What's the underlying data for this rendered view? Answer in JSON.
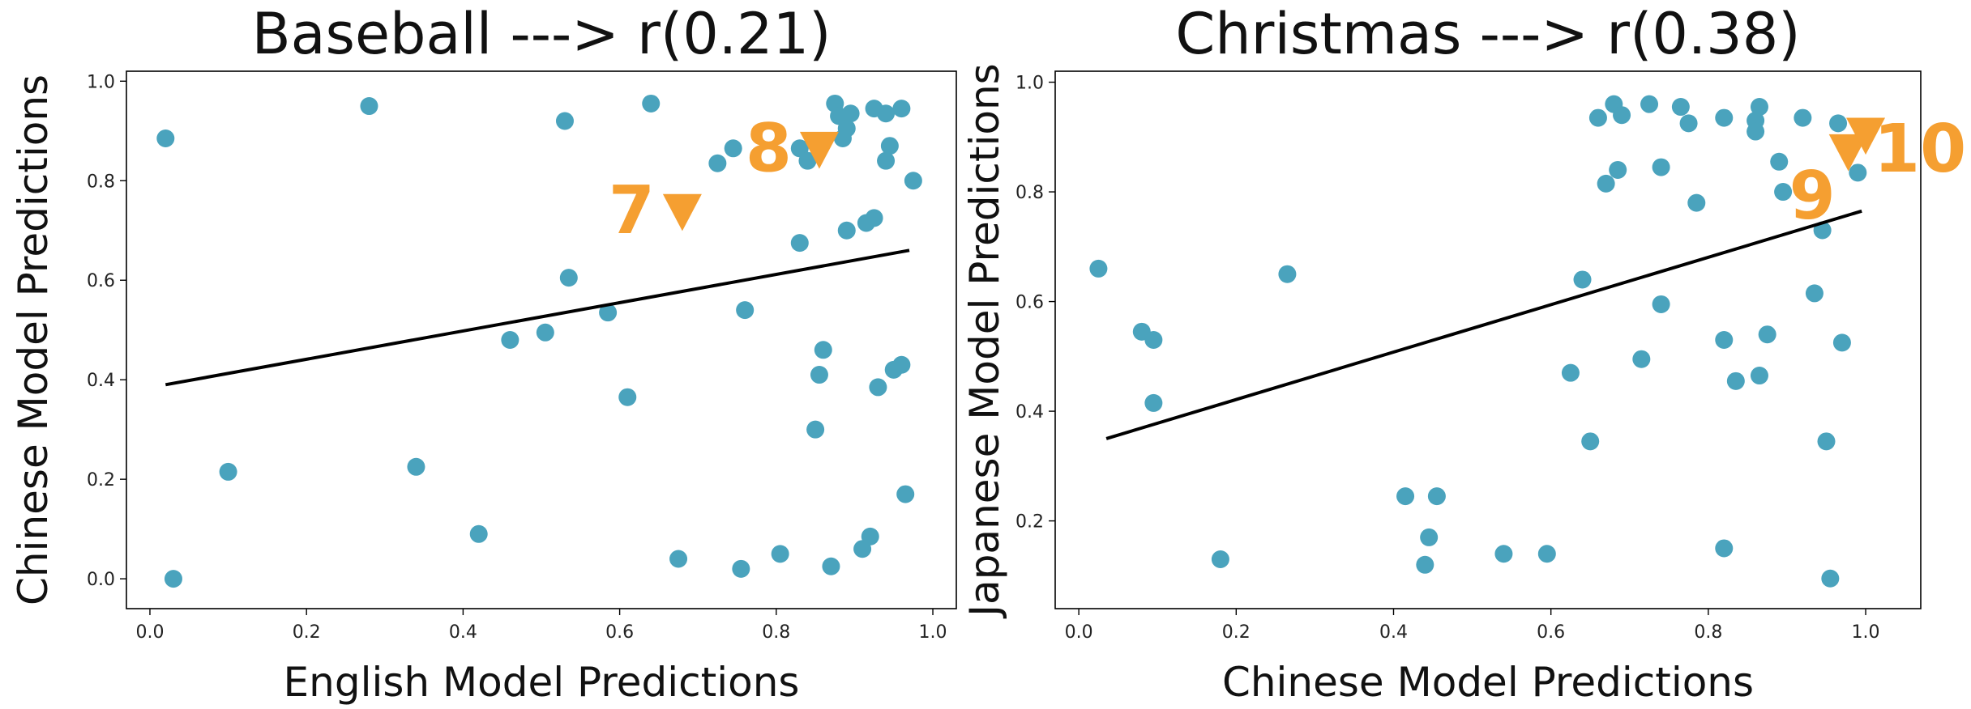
{
  "chart_data": [
    {
      "type": "scatter",
      "title": "Baseball ---> r(0.21)",
      "xlabel": "English Model Predictions",
      "ylabel": "Chinese Model Predictions",
      "xlim": [
        -0.03,
        1.03
      ],
      "ylim": [
        -0.06,
        1.02
      ],
      "xticks": [
        0.0,
        0.2,
        0.4,
        0.6,
        0.8,
        1.0
      ],
      "xtick_labels": [
        "0.0",
        "0.2",
        "0.4",
        "0.6",
        "0.8",
        "1.0"
      ],
      "yticks": [
        0.0,
        0.2,
        0.4,
        0.6,
        0.8,
        1.0
      ],
      "ytick_labels": [
        "0.0",
        "0.2",
        "0.4",
        "0.6",
        "0.8",
        "1.0"
      ],
      "grid": false,
      "point_color": "#4aa3bd",
      "fit_color": "#000000",
      "points": [
        [
          0.02,
          0.885
        ],
        [
          0.03,
          0.0
        ],
        [
          0.1,
          0.215
        ],
        [
          0.28,
          0.95
        ],
        [
          0.34,
          0.225
        ],
        [
          0.42,
          0.09
        ],
        [
          0.46,
          0.48
        ],
        [
          0.505,
          0.495
        ],
        [
          0.53,
          0.92
        ],
        [
          0.535,
          0.605
        ],
        [
          0.585,
          0.535
        ],
        [
          0.61,
          0.365
        ],
        [
          0.64,
          0.955
        ],
        [
          0.675,
          0.04
        ],
        [
          0.725,
          0.835
        ],
        [
          0.745,
          0.865
        ],
        [
          0.755,
          0.02
        ],
        [
          0.76,
          0.54
        ],
        [
          0.805,
          0.05
        ],
        [
          0.83,
          0.865
        ],
        [
          0.83,
          0.675
        ],
        [
          0.84,
          0.84
        ],
        [
          0.85,
          0.3
        ],
        [
          0.855,
          0.41
        ],
        [
          0.86,
          0.46
        ],
        [
          0.87,
          0.025
        ],
        [
          0.875,
          0.955
        ],
        [
          0.88,
          0.93
        ],
        [
          0.885,
          0.885
        ],
        [
          0.89,
          0.905
        ],
        [
          0.895,
          0.935
        ],
        [
          0.89,
          0.7
        ],
        [
          0.91,
          0.06
        ],
        [
          0.915,
          0.715
        ],
        [
          0.92,
          0.085
        ],
        [
          0.925,
          0.725
        ],
        [
          0.925,
          0.945
        ],
        [
          0.93,
          0.385
        ],
        [
          0.94,
          0.935
        ],
        [
          0.94,
          0.84
        ],
        [
          0.945,
          0.87
        ],
        [
          0.95,
          0.42
        ],
        [
          0.96,
          0.43
        ],
        [
          0.96,
          0.945
        ],
        [
          0.965,
          0.17
        ],
        [
          0.975,
          0.8
        ]
      ],
      "fit_line": [
        [
          0.02,
          0.39
        ],
        [
          0.97,
          0.66
        ]
      ],
      "annotations": [
        {
          "label": "7",
          "x": 0.68,
          "y": 0.74,
          "color": "#f59f31",
          "label_side": "left"
        },
        {
          "label": "8",
          "x": 0.855,
          "y": 0.865,
          "color": "#f59f31",
          "label_side": "left"
        }
      ]
    },
    {
      "type": "scatter",
      "title": "Christmas ---> r(0.38)",
      "xlabel": "Chinese Model Predictions",
      "ylabel": "Japanese Model Predictions",
      "xlim": [
        -0.03,
        1.07
      ],
      "ylim": [
        0.04,
        1.02
      ],
      "xticks": [
        0.0,
        0.2,
        0.4,
        0.6,
        0.8,
        1.0
      ],
      "xtick_labels": [
        "0.0",
        "0.2",
        "0.4",
        "0.6",
        "0.8",
        "1.0"
      ],
      "yticks": [
        0.2,
        0.4,
        0.6,
        0.8,
        1.0
      ],
      "ytick_labels": [
        "0.2",
        "0.4",
        "0.6",
        "0.8",
        "1.0"
      ],
      "grid": false,
      "point_color": "#4aa3bd",
      "fit_color": "#000000",
      "points": [
        [
          0.025,
          0.66
        ],
        [
          0.08,
          0.545
        ],
        [
          0.095,
          0.53
        ],
        [
          0.095,
          0.415
        ],
        [
          0.18,
          0.13
        ],
        [
          0.265,
          0.65
        ],
        [
          0.415,
          0.245
        ],
        [
          0.44,
          0.12
        ],
        [
          0.445,
          0.17
        ],
        [
          0.455,
          0.245
        ],
        [
          0.54,
          0.14
        ],
        [
          0.595,
          0.14
        ],
        [
          0.625,
          0.47
        ],
        [
          0.64,
          0.64
        ],
        [
          0.65,
          0.345
        ],
        [
          0.66,
          0.935
        ],
        [
          0.67,
          0.815
        ],
        [
          0.68,
          0.96
        ],
        [
          0.685,
          0.84
        ],
        [
          0.69,
          0.94
        ],
        [
          0.715,
          0.495
        ],
        [
          0.725,
          0.96
        ],
        [
          0.74,
          0.845
        ],
        [
          0.74,
          0.595
        ],
        [
          0.765,
          0.955
        ],
        [
          0.775,
          0.925
        ],
        [
          0.785,
          0.78
        ],
        [
          0.82,
          0.935
        ],
        [
          0.82,
          0.53
        ],
        [
          0.82,
          0.15
        ],
        [
          0.835,
          0.455
        ],
        [
          0.86,
          0.93
        ],
        [
          0.86,
          0.91
        ],
        [
          0.865,
          0.955
        ],
        [
          0.865,
          0.465
        ],
        [
          0.875,
          0.54
        ],
        [
          0.89,
          0.855
        ],
        [
          0.895,
          0.8
        ],
        [
          0.92,
          0.935
        ],
        [
          0.935,
          0.615
        ],
        [
          0.945,
          0.73
        ],
        [
          0.95,
          0.345
        ],
        [
          0.955,
          0.095
        ],
        [
          0.965,
          0.925
        ],
        [
          0.97,
          0.525
        ],
        [
          0.99,
          0.835
        ]
      ],
      "fit_line": [
        [
          0.035,
          0.35
        ],
        [
          0.995,
          0.765
        ]
      ],
      "annotations": [
        {
          "label": "9",
          "x": 0.978,
          "y": 0.875,
          "color": "#f59f31",
          "label_side": "left-below"
        },
        {
          "label": "10",
          "x": 1.0,
          "y": 0.905,
          "color": "#f59f31",
          "label_side": "right"
        }
      ]
    }
  ]
}
